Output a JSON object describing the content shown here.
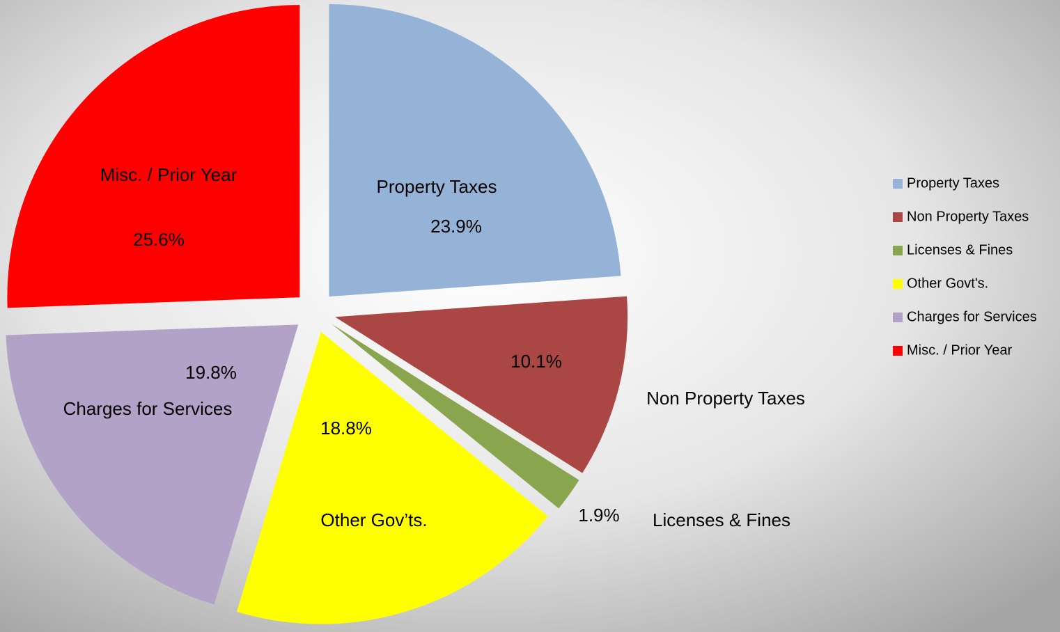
{
  "chart_data": {
    "type": "pie",
    "categories": [
      "Property Taxes",
      "Non Property Taxes",
      "Licenses & Fines",
      "Other Govt's.",
      "Charges for Services",
      "Misc. / Prior Year"
    ],
    "slice_labels": [
      "Property Taxes",
      "Non Property Taxes",
      "Licenses & Fines",
      "Other Gov’ts.",
      "Charges for Services",
      "Misc. / Prior Year"
    ],
    "values": [
      23.9,
      10.1,
      1.9,
      18.8,
      19.8,
      25.6
    ],
    "value_labels": [
      "23.9%",
      "10.1%",
      "1.9%",
      "18.8%",
      "19.8%",
      "25.6%"
    ],
    "colors": [
      "#95b3d7",
      "#aa4643",
      "#89a54e",
      "#ffff00",
      "#b3a2c7",
      "#ff0000"
    ],
    "legend": "right"
  }
}
